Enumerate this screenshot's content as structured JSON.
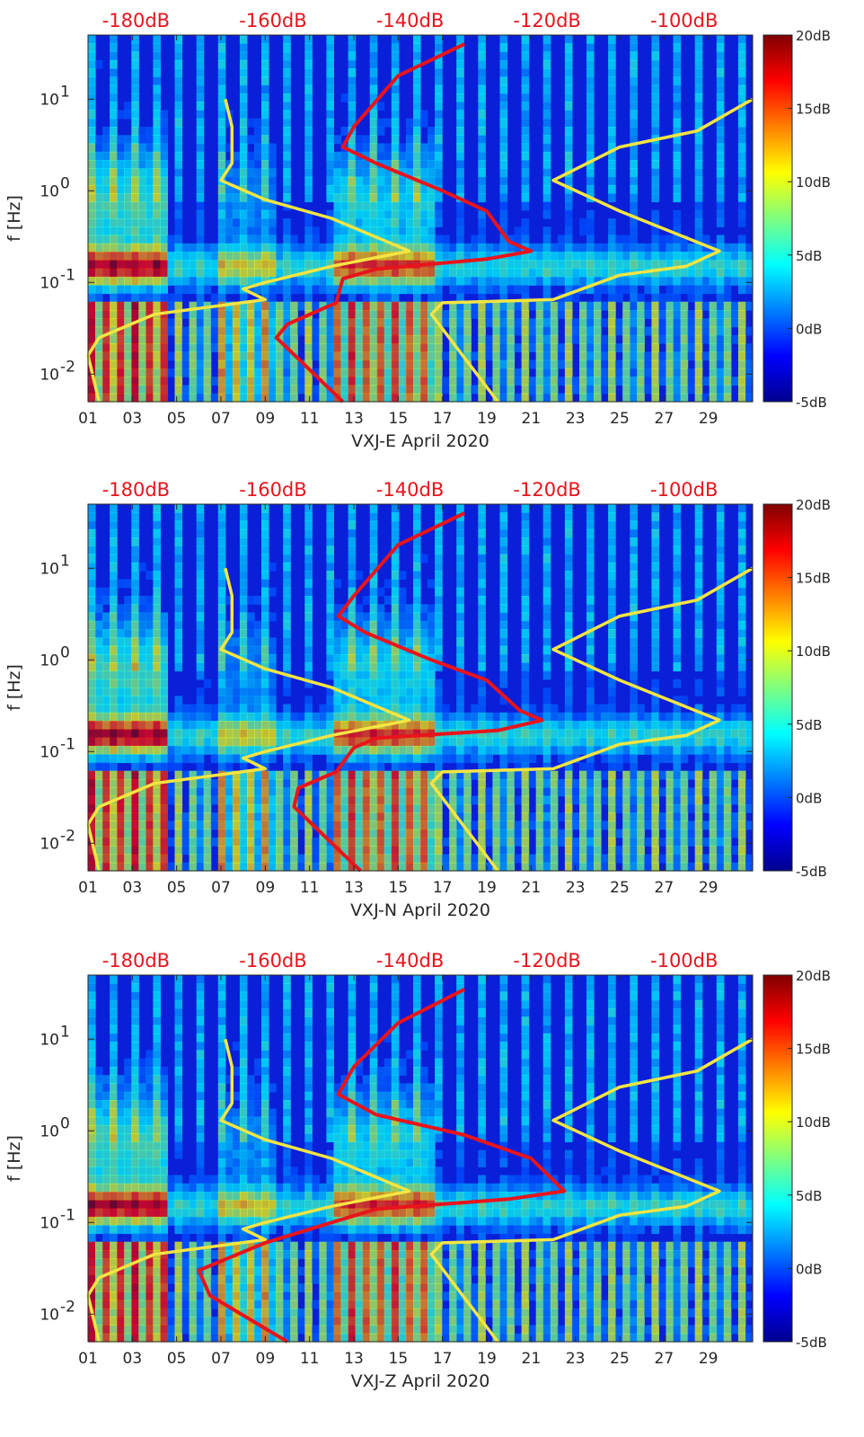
{
  "chart_data": [
    {
      "type": "heatmap",
      "panel": "VXJ-E",
      "xlabel": "VXJ-E April 2020",
      "ylabel": "f [Hz]",
      "x_tick_labels": [
        "01",
        "03",
        "05",
        "07",
        "09",
        "11",
        "13",
        "15",
        "17",
        "19",
        "21",
        "23",
        "25",
        "27",
        "29"
      ],
      "x_range_days": [
        1,
        31
      ],
      "y_scale": "log",
      "y_range_hz": [
        0.005,
        50
      ],
      "y_tick_labels": [
        {
          "base": "10",
          "exp": "1",
          "value": 10
        },
        {
          "base": "10",
          "exp": "0",
          "value": 1
        },
        {
          "base": "10",
          "exp": "-1",
          "value": 0.1
        },
        {
          "base": "10",
          "exp": "-2",
          "value": 0.01
        }
      ],
      "top_axis_labels": [
        "-180dB",
        "-160dB",
        "-140dB",
        "-120dB",
        "-100dB"
      ],
      "top_axis_range_db": [
        -187,
        -90
      ],
      "colorbar": {
        "labels": [
          "20dB",
          "15dB",
          "10dB",
          "5dB",
          "0dB",
          "-5dB"
        ],
        "range_db": [
          -5,
          20
        ]
      },
      "curves": [
        {
          "color": "#f4e542",
          "points_day_hz": [
            [
              7.2,
              10
            ],
            [
              7.5,
              5
            ],
            [
              7.5,
              2
            ],
            [
              7,
              1.3
            ],
            [
              9,
              0.8
            ],
            [
              12,
              0.5
            ],
            [
              15.5,
              0.22
            ],
            [
              12,
              0.15
            ],
            [
              9,
              0.1
            ],
            [
              8,
              0.085
            ],
            [
              9,
              0.065
            ],
            [
              4,
              0.045
            ],
            [
              1.5,
              0.025
            ],
            [
              1,
              0.016
            ],
            [
              1.5,
              0.005
            ]
          ]
        },
        {
          "color": "#f4e542",
          "points_day_hz": [
            [
              31,
              10
            ],
            [
              28.5,
              4.5
            ],
            [
              25,
              3
            ],
            [
              22,
              1.3
            ],
            [
              25,
              0.6
            ],
            [
              29.5,
              0.22
            ],
            [
              28,
              0.15
            ],
            [
              25,
              0.12
            ],
            [
              22,
              0.065
            ],
            [
              17,
              0.06
            ],
            [
              16.5,
              0.045
            ],
            [
              19.5,
              0.005
            ]
          ]
        },
        {
          "color": "#e8141c",
          "points_day_hz": [
            [
              18,
              40
            ],
            [
              15,
              18
            ],
            [
              13,
              5
            ],
            [
              12.5,
              3
            ],
            [
              14,
              2
            ],
            [
              17,
              1
            ],
            [
              19,
              0.6
            ],
            [
              20,
              0.28
            ],
            [
              21,
              0.22
            ],
            [
              19,
              0.18
            ],
            [
              14,
              0.14
            ],
            [
              12.5,
              0.11
            ],
            [
              12.2,
              0.06
            ],
            [
              10,
              0.035
            ],
            [
              9.5,
              0.025
            ],
            [
              12.5,
              0.005
            ]
          ]
        }
      ]
    },
    {
      "type": "heatmap",
      "panel": "VXJ-N",
      "xlabel": "VXJ-N April 2020",
      "ylabel": "f [Hz]",
      "x_tick_labels": [
        "01",
        "03",
        "05",
        "07",
        "09",
        "11",
        "13",
        "15",
        "17",
        "19",
        "21",
        "23",
        "25",
        "27",
        "29"
      ],
      "x_range_days": [
        1,
        31
      ],
      "y_scale": "log",
      "y_range_hz": [
        0.005,
        50
      ],
      "y_tick_labels": [
        {
          "base": "10",
          "exp": "1",
          "value": 10
        },
        {
          "base": "10",
          "exp": "0",
          "value": 1
        },
        {
          "base": "10",
          "exp": "-1",
          "value": 0.1
        },
        {
          "base": "10",
          "exp": "-2",
          "value": 0.01
        }
      ],
      "top_axis_labels": [
        "-180dB",
        "-160dB",
        "-140dB",
        "-120dB",
        "-100dB"
      ],
      "top_axis_range_db": [
        -187,
        -90
      ],
      "colorbar": {
        "labels": [
          "20dB",
          "15dB",
          "10dB",
          "5dB",
          "0dB",
          "-5dB"
        ],
        "range_db": [
          -5,
          20
        ]
      },
      "curves": [
        {
          "color": "#f4e542",
          "points_day_hz": [
            [
              7.2,
              10
            ],
            [
              7.5,
              5
            ],
            [
              7.5,
              2
            ],
            [
              7,
              1.3
            ],
            [
              9,
              0.8
            ],
            [
              12,
              0.5
            ],
            [
              15.5,
              0.22
            ],
            [
              12,
              0.15
            ],
            [
              9,
              0.1
            ],
            [
              8,
              0.085
            ],
            [
              9,
              0.065
            ],
            [
              4,
              0.045
            ],
            [
              1.5,
              0.025
            ],
            [
              1,
              0.016
            ],
            [
              1.5,
              0.005
            ]
          ]
        },
        {
          "color": "#f4e542",
          "points_day_hz": [
            [
              31,
              10
            ],
            [
              28.5,
              4.5
            ],
            [
              25,
              3
            ],
            [
              22,
              1.3
            ],
            [
              25,
              0.6
            ],
            [
              29.5,
              0.22
            ],
            [
              28,
              0.15
            ],
            [
              25,
              0.12
            ],
            [
              22,
              0.065
            ],
            [
              17,
              0.06
            ],
            [
              16.5,
              0.045
            ],
            [
              19.5,
              0.005
            ]
          ]
        },
        {
          "color": "#e8141c",
          "points_day_hz": [
            [
              18,
              40
            ],
            [
              15,
              18
            ],
            [
              13,
              5
            ],
            [
              12.3,
              3
            ],
            [
              13.5,
              2
            ],
            [
              16.5,
              1
            ],
            [
              19,
              0.6
            ],
            [
              20.5,
              0.28
            ],
            [
              21.5,
              0.22
            ],
            [
              19.5,
              0.17
            ],
            [
              14,
              0.14
            ],
            [
              13,
              0.11
            ],
            [
              12.2,
              0.06
            ],
            [
              10.5,
              0.04
            ],
            [
              10.3,
              0.025
            ],
            [
              13.3,
              0.005
            ]
          ]
        }
      ]
    },
    {
      "type": "heatmap",
      "panel": "VXJ-Z",
      "xlabel": "VXJ-Z April 2020",
      "ylabel": "f [Hz]",
      "x_tick_labels": [
        "01",
        "03",
        "05",
        "07",
        "09",
        "11",
        "13",
        "15",
        "17",
        "19",
        "21",
        "23",
        "25",
        "27",
        "29"
      ],
      "x_range_days": [
        1,
        31
      ],
      "y_scale": "log",
      "y_range_hz": [
        0.005,
        50
      ],
      "y_tick_labels": [
        {
          "base": "10",
          "exp": "1",
          "value": 10
        },
        {
          "base": "10",
          "exp": "0",
          "value": 1
        },
        {
          "base": "10",
          "exp": "-1",
          "value": 0.1
        },
        {
          "base": "10",
          "exp": "-2",
          "value": 0.01
        }
      ],
      "top_axis_labels": [
        "-180dB",
        "-160dB",
        "-140dB",
        "-120dB",
        "-100dB"
      ],
      "top_axis_range_db": [
        -187,
        -90
      ],
      "colorbar": {
        "labels": [
          "20dB",
          "15dB",
          "10dB",
          "5dB",
          "0dB",
          "-5dB"
        ],
        "range_db": [
          -5,
          20
        ]
      },
      "curves": [
        {
          "color": "#f4e542",
          "points_day_hz": [
            [
              7.2,
              10
            ],
            [
              7.5,
              5
            ],
            [
              7.5,
              2
            ],
            [
              7,
              1.3
            ],
            [
              9,
              0.8
            ],
            [
              12,
              0.5
            ],
            [
              15.5,
              0.22
            ],
            [
              12,
              0.15
            ],
            [
              9,
              0.1
            ],
            [
              8,
              0.085
            ],
            [
              9,
              0.065
            ],
            [
              4,
              0.045
            ],
            [
              1.5,
              0.025
            ],
            [
              1,
              0.016
            ],
            [
              1.5,
              0.005
            ]
          ]
        },
        {
          "color": "#f4e542",
          "points_day_hz": [
            [
              31,
              10
            ],
            [
              28.5,
              4.5
            ],
            [
              25,
              3
            ],
            [
              22,
              1.3
            ],
            [
              25,
              0.6
            ],
            [
              29.5,
              0.22
            ],
            [
              28,
              0.15
            ],
            [
              25,
              0.12
            ],
            [
              22,
              0.065
            ],
            [
              17,
              0.06
            ],
            [
              16.5,
              0.045
            ],
            [
              19.5,
              0.005
            ]
          ]
        },
        {
          "color": "#e8141c",
          "points_day_hz": [
            [
              18,
              35
            ],
            [
              15,
              15
            ],
            [
              13,
              5
            ],
            [
              12.3,
              2.5
            ],
            [
              14,
              1.5
            ],
            [
              18,
              0.9
            ],
            [
              21,
              0.5
            ],
            [
              22.5,
              0.22
            ],
            [
              20,
              0.18
            ],
            [
              14,
              0.14
            ],
            [
              12,
              0.1
            ],
            [
              9,
              0.06
            ],
            [
              6,
              0.03
            ],
            [
              6.5,
              0.016
            ],
            [
              10,
              0.005
            ]
          ]
        }
      ]
    }
  ]
}
